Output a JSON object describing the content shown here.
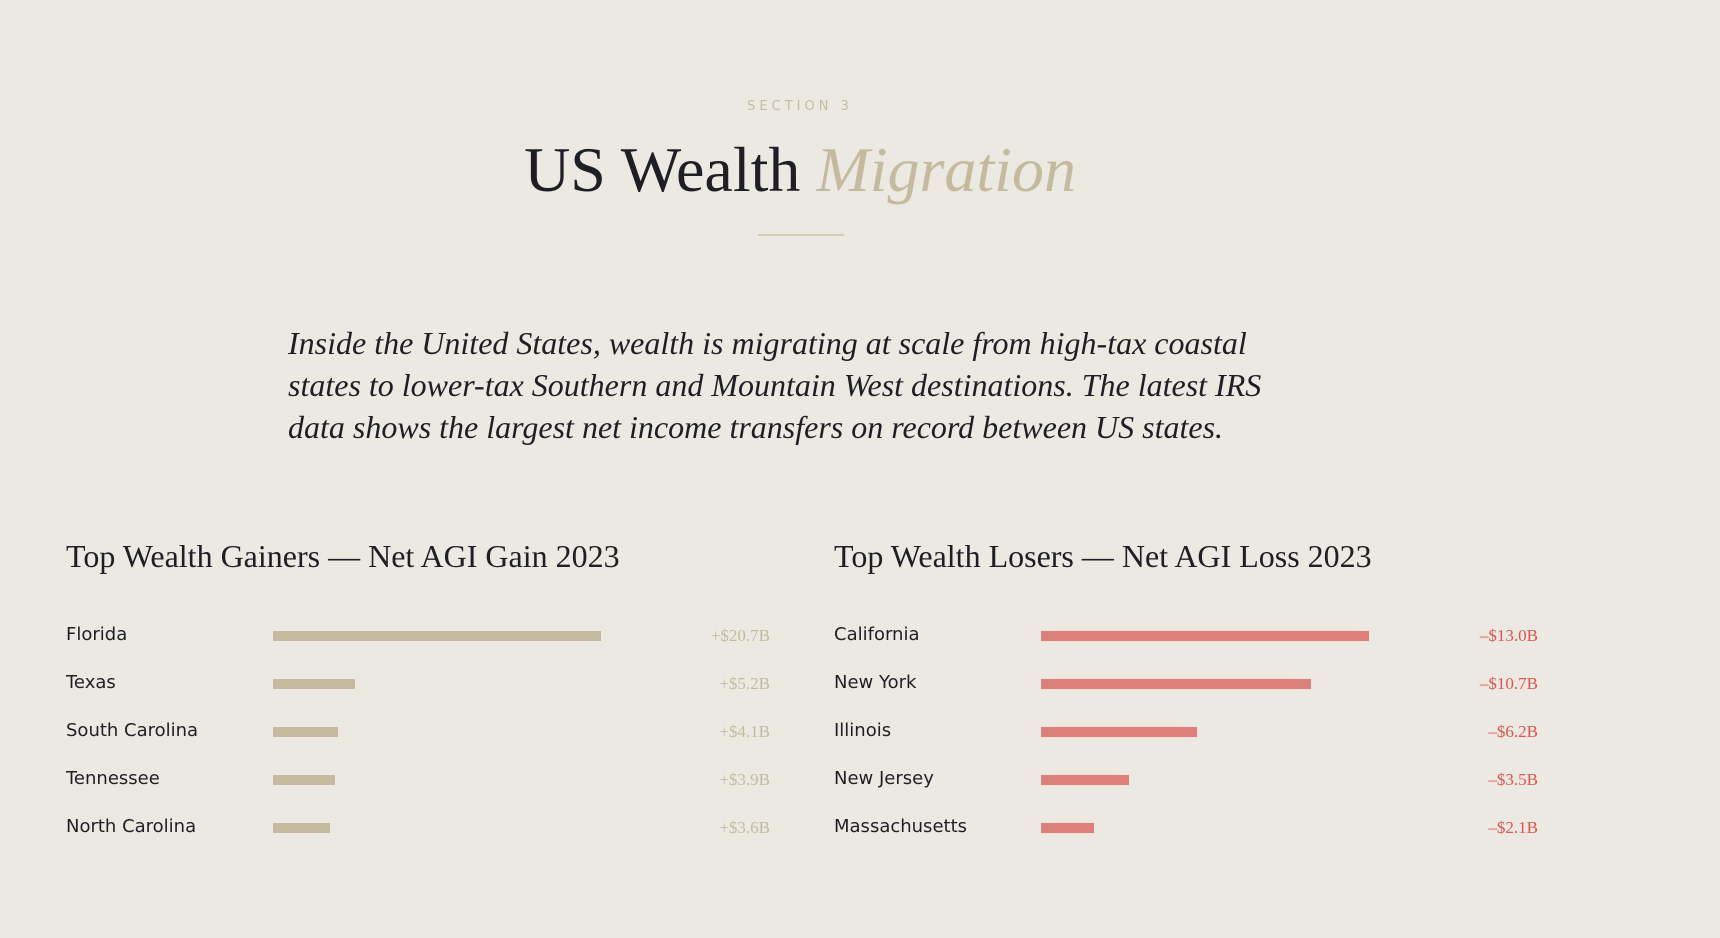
{
  "header": {
    "eyebrow": "SECTION 3",
    "title_main": "US Wealth",
    "title_accent": "Migration"
  },
  "intro": "Inside the United States, wealth is migrating at scale from high-tax coastal states to lower-tax Southern and Mountain West destinations. The latest IRS data shows the largest net income transfers on record between US states.",
  "chart_data": [
    {
      "type": "bar",
      "orientation": "horizontal",
      "title": "Top Wealth Gainers — Net AGI Gain 2023",
      "unit": "$B",
      "color": "#C4BB9F",
      "value_color": "#C4BB9F",
      "categories": [
        "Florida",
        "Texas",
        "South Carolina",
        "Tennessee",
        "North Carolina"
      ],
      "values": [
        20.7,
        5.2,
        4.1,
        3.9,
        3.6
      ],
      "labels": [
        "+$20.7B",
        "+$5.2B",
        "+$4.1B",
        "+$3.9B",
        "+$3.6B"
      ]
    },
    {
      "type": "bar",
      "orientation": "horizontal",
      "title": "Top Wealth Losers — Net AGI Loss 2023",
      "unit": "$B",
      "color": "#E07F79",
      "value_color": "#E0544C",
      "categories": [
        "California",
        "New York",
        "Illinois",
        "New Jersey",
        "Massachusetts"
      ],
      "values": [
        -13.0,
        -10.7,
        -6.2,
        -3.5,
        -2.1
      ],
      "labels": [
        "–$13.0B",
        "–$10.7B",
        "–$6.2B",
        "–$3.5B",
        "–$2.1B"
      ]
    }
  ]
}
